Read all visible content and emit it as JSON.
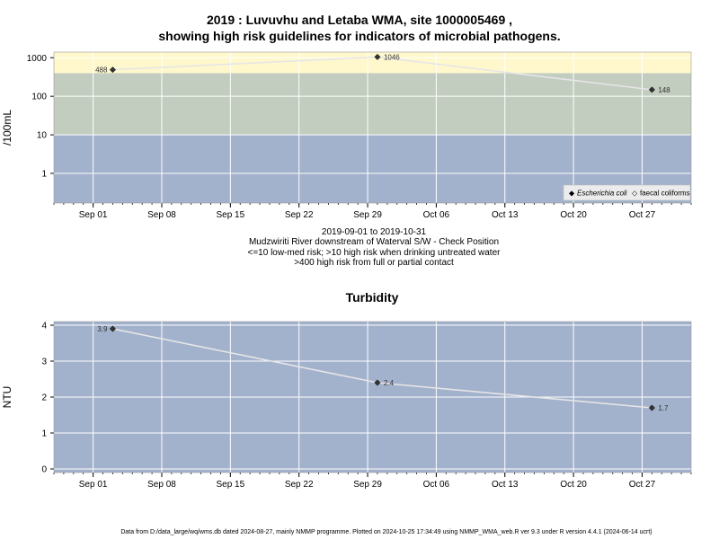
{
  "header": {
    "title_line1": "2019 : Luvuvhu and Letaba WMA, site 1000005469 ,",
    "title_line2": "showing high risk guidelines for indicators of microbial pathogens."
  },
  "info": {
    "date_range": "2019-09-01 to 2019-10-31",
    "location": "Mudzwiriti River downstream of Waterval S/W - Check Position",
    "guideline1": "<=10 low-med risk; >10 high risk when drinking untreated water",
    "guideline2": ">400 high risk from full or partial contact"
  },
  "footer": {
    "text": "Data from D:/data_large/wq/wms.db dated 2024-08-27, mainly NMMP programme. Plotted on 2024-10-25 17:34:49 using NMMP_WMA_web.R ver 9.3 under R version 4.4.1 (2024-06-14 ucrt)"
  },
  "colors": {
    "band_low": "#a2b1cc",
    "band_mid": "#c2ccbf",
    "band_high": "#fff8cc",
    "line": "#e6e6e6",
    "point": "#333333"
  },
  "chart_data": [
    {
      "type": "line",
      "title": "",
      "ylabel": "/100mL",
      "y_scale": "log",
      "ylim": [
        0.17,
        1400
      ],
      "y_ticks": [
        1,
        10,
        100,
        1000
      ],
      "y_tick_labels": [
        "1",
        "10",
        "100",
        "1000"
      ],
      "xlim": [
        "2019-08-28",
        "2019-11-01"
      ],
      "x_ticks": [
        "2019-09-01",
        "2019-09-08",
        "2019-09-15",
        "2019-09-22",
        "2019-09-29",
        "2019-10-06",
        "2019-10-13",
        "2019-10-20",
        "2019-10-27"
      ],
      "x_tick_labels": [
        "Sep 01",
        "Sep 08",
        "Sep 15",
        "Sep 22",
        "Sep 29",
        "Oct 06",
        "Oct 13",
        "Oct 20",
        "Oct 27"
      ],
      "bands": [
        {
          "from": 0.17,
          "to": 10,
          "color": "#a2b1cc"
        },
        {
          "from": 10,
          "to": 400,
          "color": "#c2ccbf"
        },
        {
          "from": 400,
          "to": 1400,
          "color": "#fff8cc"
        }
      ],
      "grid": true,
      "legend_position": "bottom-right",
      "legend": [
        {
          "symbol": "◆",
          "label": "Escherichia coli",
          "italic": true
        },
        {
          "symbol": "◇",
          "label": "faecal coliforms",
          "italic": false
        }
      ],
      "series": [
        {
          "name": "Escherichia coli",
          "x": [
            "2019-09-03",
            "2019-09-30",
            "2019-10-28"
          ],
          "y": [
            488,
            1046,
            148
          ],
          "labels": [
            "488",
            "1046",
            "148"
          ]
        }
      ]
    },
    {
      "type": "line",
      "title": "Turbidity",
      "ylabel": "NTU",
      "y_scale": "linear",
      "ylim": [
        -0.1,
        4.1
      ],
      "y_ticks": [
        0,
        1,
        2,
        3,
        4
      ],
      "y_tick_labels": [
        "0",
        "1",
        "2",
        "3",
        "4"
      ],
      "xlim": [
        "2019-08-28",
        "2019-11-01"
      ],
      "x_ticks": [
        "2019-09-01",
        "2019-09-08",
        "2019-09-15",
        "2019-09-22",
        "2019-09-29",
        "2019-10-06",
        "2019-10-13",
        "2019-10-20",
        "2019-10-27"
      ],
      "x_tick_labels": [
        "Sep 01",
        "Sep 08",
        "Sep 15",
        "Sep 22",
        "Sep 29",
        "Oct 06",
        "Oct 13",
        "Oct 20",
        "Oct 27"
      ],
      "bands": [
        {
          "from": -0.1,
          "to": 4.1,
          "color": "#a2b1cc"
        }
      ],
      "grid": true,
      "series": [
        {
          "x": [
            "2019-09-03",
            "2019-09-30",
            "2019-10-28"
          ],
          "y": [
            3.9,
            2.4,
            1.7
          ],
          "labels": [
            "3.9",
            "2.4",
            "1.7"
          ]
        }
      ]
    }
  ]
}
